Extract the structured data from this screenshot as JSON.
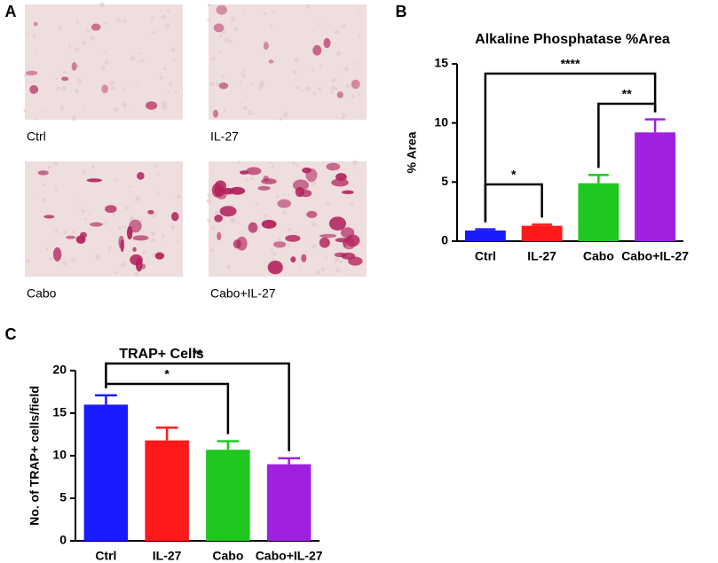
{
  "panel_labels": [
    "A",
    "B",
    "C"
  ],
  "image_captions": [
    "Ctrl",
    "IL-27",
    "Cabo",
    "Cabo+IL-27"
  ],
  "chart_data": [
    {
      "type": "bar",
      "title": "Alkaline Phosphatase %Area",
      "ylabel": "% Area",
      "categories": [
        "Ctrl",
        "IL-27",
        "Cabo",
        "Cabo+IL-27"
      ],
      "values": [
        0.9,
        1.3,
        4.9,
        9.2
      ],
      "errors": [
        0.1,
        0.1,
        0.7,
        1.1
      ],
      "colors": [
        "#1a1aff",
        "#ff1a1a",
        "#1ec81e",
        "#a020e0"
      ],
      "ylim": [
        0,
        15
      ],
      "yticks": [
        0,
        5,
        10,
        15
      ],
      "annotations": [
        {
          "text": "*",
          "pair": [
            "Ctrl",
            "IL-27"
          ]
        },
        {
          "text": "**",
          "pair": [
            "Cabo",
            "Cabo+IL-27"
          ]
        },
        {
          "text": "****",
          "pair": [
            "Ctrl",
            "Cabo+IL-27"
          ]
        }
      ]
    },
    {
      "type": "bar",
      "title": "TRAP+  Cells",
      "ylabel": "No. of TRAP+ cells/field",
      "categories": [
        "Ctrl",
        "IL-27",
        "Cabo",
        "Cabo+IL-27"
      ],
      "values": [
        16,
        11.8,
        10.7,
        9.0
      ],
      "errors": [
        1.1,
        1.5,
        1.0,
        0.7
      ],
      "colors": [
        "#1a1aff",
        "#ff1a1a",
        "#1ec81e",
        "#a020e0"
      ],
      "ylim": [
        0,
        20
      ],
      "yticks": [
        0,
        5,
        10,
        15,
        20
      ],
      "annotations": [
        {
          "text": "*",
          "pair": [
            "Ctrl",
            "Cabo"
          ]
        },
        {
          "text": "**",
          "pair": [
            "Ctrl",
            "Cabo+IL-27"
          ]
        }
      ]
    }
  ]
}
